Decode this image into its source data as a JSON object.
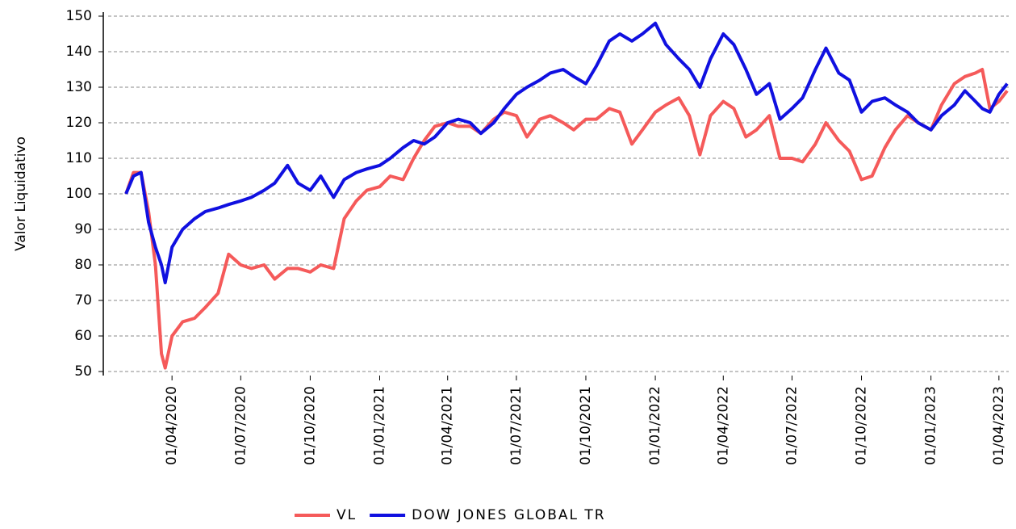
{
  "chart_data": {
    "type": "line",
    "y_label": "Valor Liquidativo",
    "x": [
      "31/01/2020",
      "10/02/2020",
      "20/02/2020",
      "01/03/2020",
      "10/03/2020",
      "18/03/2020",
      "23/03/2020",
      "01/04/2020",
      "15/04/2020",
      "01/05/2020",
      "15/05/2020",
      "01/06/2020",
      "15/06/2020",
      "01/07/2020",
      "15/07/2020",
      "01/08/2020",
      "15/08/2020",
      "01/09/2020",
      "15/09/2020",
      "01/10/2020",
      "15/10/2020",
      "01/11/2020",
      "15/11/2020",
      "01/12/2020",
      "15/12/2020",
      "01/01/2021",
      "15/01/2021",
      "01/02/2021",
      "15/02/2021",
      "01/03/2021",
      "15/03/2021",
      "01/04/2021",
      "15/04/2021",
      "01/05/2021",
      "15/05/2021",
      "01/06/2021",
      "15/06/2021",
      "01/07/2021",
      "15/07/2021",
      "01/08/2021",
      "15/08/2021",
      "01/09/2021",
      "15/09/2021",
      "01/10/2021",
      "15/10/2021",
      "01/11/2021",
      "15/11/2021",
      "01/12/2021",
      "15/12/2021",
      "01/01/2022",
      "15/01/2022",
      "01/02/2022",
      "15/02/2022",
      "01/03/2022",
      "15/03/2022",
      "01/04/2022",
      "15/04/2022",
      "01/05/2022",
      "15/05/2022",
      "01/06/2022",
      "15/06/2022",
      "01/07/2022",
      "15/07/2022",
      "01/08/2022",
      "15/08/2022",
      "01/09/2022",
      "15/09/2022",
      "01/10/2022",
      "15/10/2022",
      "01/11/2022",
      "15/11/2022",
      "01/12/2022",
      "15/12/2022",
      "01/01/2023",
      "15/01/2023",
      "01/02/2023",
      "15/02/2023",
      "01/03/2023",
      "10/03/2023",
      "20/03/2023",
      "01/04/2023",
      "12/04/2023"
    ],
    "series": [
      {
        "name": "VL",
        "color": "#f55a5a",
        "values": [
          100,
          106,
          106,
          95,
          80,
          55,
          51,
          60,
          64,
          65,
          68,
          72,
          83,
          80,
          79,
          80,
          76,
          79,
          79,
          78,
          80,
          79,
          93,
          98,
          101,
          102,
          105,
          104,
          110,
          115,
          119,
          120,
          119,
          119,
          117,
          121,
          123,
          122,
          116,
          121,
          122,
          120,
          118,
          121,
          121,
          124,
          123,
          114,
          118,
          123,
          125,
          127,
          122,
          111,
          122,
          126,
          124,
          116,
          118,
          122,
          110,
          110,
          109,
          114,
          120,
          115,
          112,
          104,
          105,
          113,
          118,
          122,
          120,
          118,
          125,
          131,
          133,
          134,
          135,
          124,
          126,
          129
        ]
      },
      {
        "name": "DOW JONES GLOBAL TR",
        "color": "#1010e0",
        "values": [
          100,
          105,
          106,
          92,
          85,
          80,
          75,
          85,
          90,
          93,
          95,
          96,
          97,
          98,
          99,
          101,
          103,
          108,
          103,
          101,
          105,
          99,
          104,
          106,
          107,
          108,
          110,
          113,
          115,
          114,
          116,
          120,
          121,
          120,
          117,
          120,
          124,
          128,
          130,
          132,
          134,
          135,
          133,
          131,
          136,
          143,
          145,
          143,
          145,
          148,
          142,
          138,
          135,
          130,
          138,
          145,
          142,
          135,
          128,
          131,
          121,
          124,
          127,
          135,
          141,
          134,
          132,
          123,
          126,
          127,
          125,
          123,
          120,
          118,
          122,
          125,
          129,
          126,
          124,
          123,
          128,
          131
        ]
      }
    ],
    "xlim": [
      "01/01/2020",
      "14/04/2023"
    ],
    "xticks": [
      "01/04/2020",
      "01/07/2020",
      "01/10/2020",
      "01/01/2021",
      "01/04/2021",
      "01/07/2021",
      "01/10/2021",
      "01/01/2022",
      "01/04/2022",
      "01/07/2022",
      "01/10/2022",
      "01/01/2023",
      "01/04/2023"
    ],
    "ylim": [
      50,
      150
    ],
    "yticks": [
      50,
      60,
      70,
      80,
      90,
      100,
      110,
      120,
      130,
      140,
      150
    ],
    "grid": true
  }
}
